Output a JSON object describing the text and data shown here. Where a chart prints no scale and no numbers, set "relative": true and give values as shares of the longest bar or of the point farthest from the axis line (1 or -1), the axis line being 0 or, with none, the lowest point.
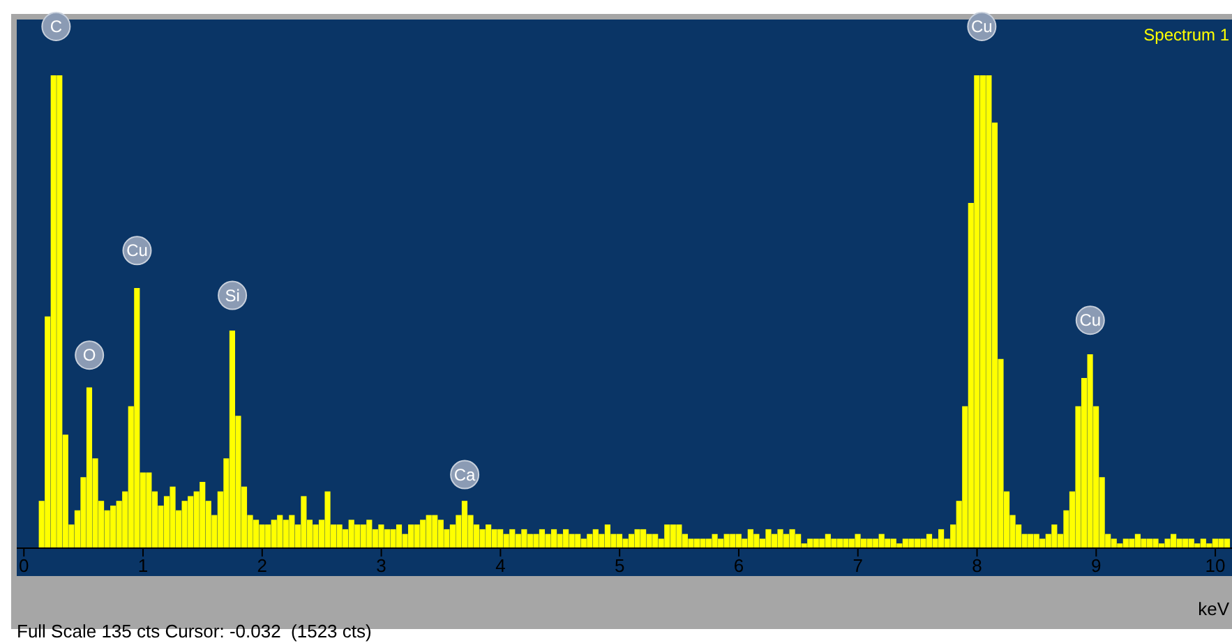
{
  "chart_data": {
    "type": "bar",
    "relative": true,
    "xlabel": "keV",
    "legend": "top right",
    "xlim": [
      -0.06,
      10.14
    ],
    "xticks": [
      0,
      1,
      2,
      3,
      4,
      5,
      6,
      7,
      8,
      9,
      10
    ],
    "x": [
      0,
      0.05,
      0.1,
      0.15,
      0.2,
      0.25,
      0.3,
      0.35,
      0.4,
      0.45,
      0.5,
      0.55,
      0.6,
      0.65,
      0.7,
      0.75,
      0.8,
      0.85,
      0.9,
      0.95,
      1,
      1.05,
      1.1,
      1.15,
      1.2,
      1.25,
      1.3,
      1.35,
      1.4,
      1.45,
      1.5,
      1.55,
      1.6,
      1.65,
      1.7,
      1.75,
      1.8,
      1.85,
      1.9,
      1.95,
      2,
      2.05,
      2.1,
      2.15,
      2.2,
      2.25,
      2.3,
      2.35,
      2.4,
      2.45,
      2.5,
      2.55,
      2.6,
      2.65,
      2.7,
      2.75,
      2.8,
      2.85,
      2.9,
      2.95,
      3,
      3.05,
      3.1,
      3.15,
      3.2,
      3.25,
      3.3,
      3.35,
      3.4,
      3.45,
      3.5,
      3.55,
      3.6,
      3.65,
      3.7,
      3.75,
      3.8,
      3.85,
      3.9,
      3.95,
      4,
      4.05,
      4.1,
      4.15,
      4.2,
      4.25,
      4.3,
      4.35,
      4.4,
      4.45,
      4.5,
      4.55,
      4.6,
      4.65,
      4.7,
      4.75,
      4.8,
      4.85,
      4.9,
      4.95,
      5,
      5.05,
      5.1,
      5.15,
      5.2,
      5.25,
      5.3,
      5.35,
      5.4,
      5.45,
      5.5,
      5.55,
      5.6,
      5.65,
      5.7,
      5.75,
      5.8,
      5.85,
      5.9,
      5.95,
      6,
      6.05,
      6.1,
      6.15,
      6.2,
      6.25,
      6.3,
      6.35,
      6.4,
      6.45,
      6.5,
      6.55,
      6.6,
      6.65,
      6.7,
      6.75,
      6.8,
      6.85,
      6.9,
      6.95,
      7,
      7.05,
      7.1,
      7.15,
      7.2,
      7.25,
      7.3,
      7.35,
      7.4,
      7.45,
      7.5,
      7.55,
      7.6,
      7.65,
      7.7,
      7.75,
      7.8,
      7.85,
      7.9,
      7.95,
      8,
      8.05,
      8.1,
      8.15,
      8.2,
      8.25,
      8.3,
      8.35,
      8.4,
      8.45,
      8.5,
      8.55,
      8.6,
      8.65,
      8.7,
      8.75,
      8.8,
      8.85,
      8.9,
      8.95,
      9,
      9.05,
      9.1,
      9.15,
      9.2,
      9.25,
      9.3,
      9.35,
      9.4,
      9.45,
      9.5,
      9.55,
      9.6,
      9.65,
      9.7,
      9.75,
      9.8,
      9.85,
      9.9,
      9.95,
      10,
      10.05,
      10.1
    ],
    "series": [
      {
        "name": "Spectrum 1",
        "color": "#ffff00",
        "values": [
          0,
          0,
          0,
          0.1,
          0.49,
          1,
          1,
          0.24,
          0.05,
          0.08,
          0.15,
          0.34,
          0.19,
          0.1,
          0.08,
          0.09,
          0.1,
          0.12,
          0.3,
          0.55,
          0.16,
          0.16,
          0.12,
          0.09,
          0.11,
          0.13,
          0.08,
          0.1,
          0.11,
          0.12,
          0.14,
          0.1,
          0.07,
          0.12,
          0.19,
          0.46,
          0.28,
          0.13,
          0.07,
          0.06,
          0.05,
          0.05,
          0.06,
          0.07,
          0.06,
          0.07,
          0.05,
          0.11,
          0.06,
          0.05,
          0.06,
          0.12,
          0.05,
          0.05,
          0.04,
          0.06,
          0.05,
          0.05,
          0.06,
          0.04,
          0.05,
          0.04,
          0.04,
          0.05,
          0.03,
          0.05,
          0.05,
          0.06,
          0.07,
          0.07,
          0.06,
          0.04,
          0.05,
          0.07,
          0.1,
          0.07,
          0.05,
          0.04,
          0.05,
          0.04,
          0.04,
          0.03,
          0.04,
          0.03,
          0.04,
          0.03,
          0.03,
          0.04,
          0.03,
          0.04,
          0.03,
          0.04,
          0.03,
          0.03,
          0.02,
          0.03,
          0.04,
          0.03,
          0.05,
          0.03,
          0.03,
          0.02,
          0.03,
          0.04,
          0.04,
          0.03,
          0.03,
          0.02,
          0.05,
          0.05,
          0.05,
          0.03,
          0.02,
          0.02,
          0.02,
          0.02,
          0.03,
          0.02,
          0.03,
          0.03,
          0.03,
          0.02,
          0.04,
          0.03,
          0.02,
          0.04,
          0.03,
          0.04,
          0.03,
          0.04,
          0.03,
          0.01,
          0.02,
          0.02,
          0.02,
          0.03,
          0.02,
          0.02,
          0.02,
          0.02,
          0.03,
          0.02,
          0.02,
          0.02,
          0.03,
          0.02,
          0.02,
          0.01,
          0.02,
          0.02,
          0.02,
          0.02,
          0.03,
          0.02,
          0.04,
          0.02,
          0.05,
          0.1,
          0.3,
          0.73,
          1,
          1,
          1,
          0.9,
          0.4,
          0.12,
          0.07,
          0.05,
          0.03,
          0.03,
          0.03,
          0.02,
          0.03,
          0.05,
          0.03,
          0.08,
          0.12,
          0.3,
          0.36,
          0.41,
          0.3,
          0.15,
          0.03,
          0.02,
          0.01,
          0.02,
          0.02,
          0.03,
          0.02,
          0.02,
          0.02,
          0.01,
          0.02,
          0.03,
          0.02,
          0.02,
          0.02,
          0.01,
          0.02,
          0.01,
          0.02,
          0.02,
          0.02
        ]
      }
    ],
    "annotations": [
      {
        "text": "C",
        "x": 0.27,
        "y": 1
      },
      {
        "text": "O",
        "x": 0.55,
        "y": 0.34
      },
      {
        "text": "Cu",
        "x": 0.95,
        "y": 0.55
      },
      {
        "text": "Si",
        "x": 1.75,
        "y": 0.46
      },
      {
        "text": "Ca",
        "x": 3.7,
        "y": 0.1
      },
      {
        "text": "Cu",
        "x": 8.04,
        "y": 1
      },
      {
        "text": "Cu",
        "x": 8.95,
        "y": 0.41
      },
      "Full Scale 135 cts Cursor: -0.032  (1523 cts)"
    ]
  }
}
